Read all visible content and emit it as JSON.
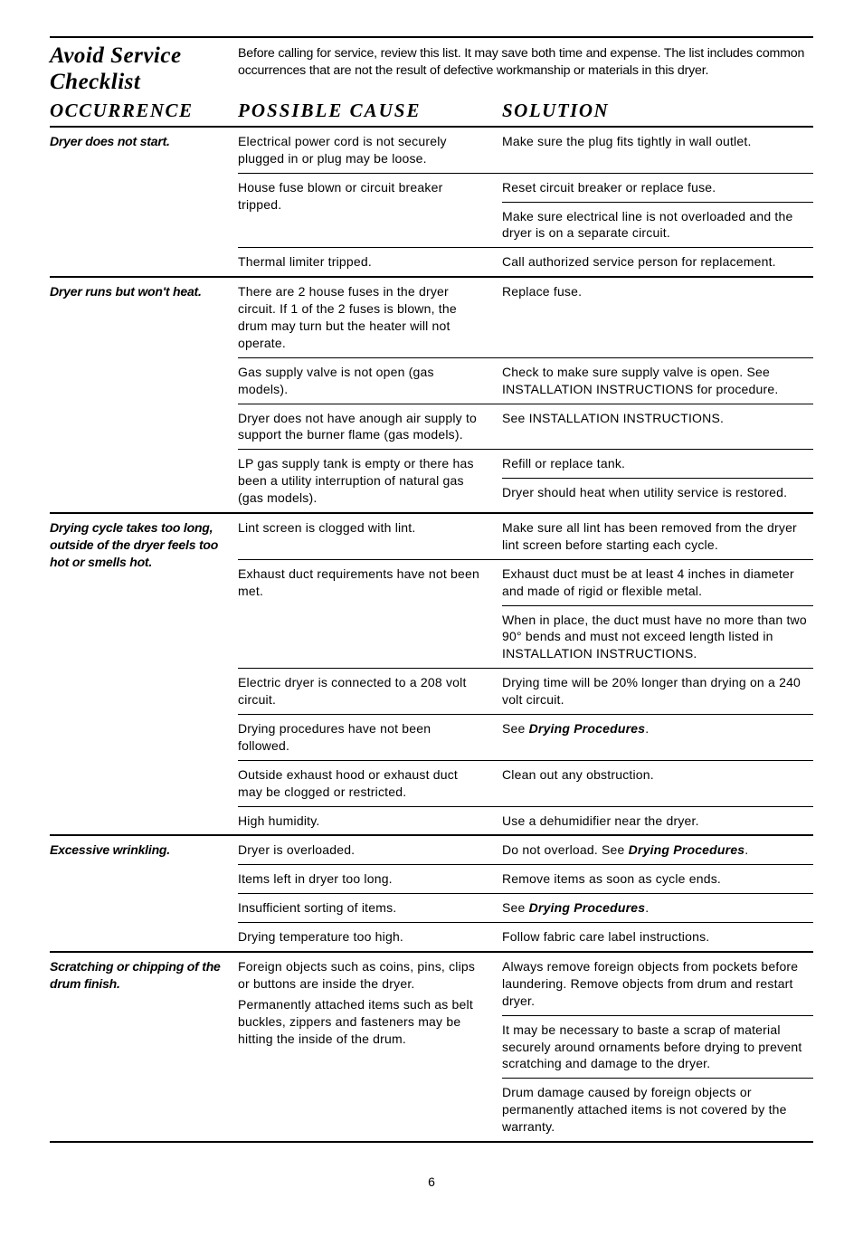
{
  "title": "Avoid Service Checklist",
  "intro": "Before calling for service, review this list. It may save both time and expense. The list includes common occurrences that are not the result of defective workmanship or materials in this dryer.",
  "headers": {
    "c1": "OCCURRENCE",
    "c2": "POSSIBLE CAUSE",
    "c3": "SOLUTION"
  },
  "sections": [
    {
      "occurrence": "Dryer does not start.",
      "pairs": [
        {
          "cause": "Electrical power cord is not securely plugged in or plug may be loose.",
          "solutions": [
            "Make sure the plug fits tightly in wall outlet."
          ]
        },
        {
          "cause": "House fuse blown or circuit breaker tripped.",
          "solutions": [
            "Reset circuit breaker or replace fuse.",
            "Make sure electrical line is not overloaded and the dryer is on a separate circuit."
          ]
        },
        {
          "cause": "Thermal limiter tripped.",
          "solutions": [
            "Call authorized service person for replacement."
          ]
        }
      ]
    },
    {
      "occurrence": "Dryer runs but won't heat.",
      "pairs": [
        {
          "cause": "There are 2 house fuses in the dryer circuit. If 1 of the 2 fuses is blown, the drum may turn but the heater will not operate.",
          "solutions": [
            "Replace fuse."
          ]
        },
        {
          "cause": "Gas supply valve is not open (gas models).",
          "solutions": [
            "Check to make sure supply valve is open. See INSTALLATION INSTRUCTIONS for procedure."
          ]
        },
        {
          "cause": "Dryer does not have anough air supply to support the burner flame (gas models).",
          "solutions": [
            "See INSTALLATION INSTRUCTIONS."
          ]
        },
        {
          "cause": "LP gas supply tank is empty or there has been a utility interruption of natural gas (gas models).",
          "solutions": [
            "Refill or replace tank.",
            "Dryer should heat when utility service is restored."
          ]
        }
      ]
    },
    {
      "occurrence": "Drying cycle takes too long, outside of the dryer feels too hot or smells hot.",
      "pairs": [
        {
          "cause": "Lint screen is clogged with lint.",
          "solutions": [
            "Make sure all lint has been removed from the dryer lint screen before starting each cycle."
          ]
        },
        {
          "cause": "Exhaust duct requirements have not been met.",
          "solutions": [
            "Exhaust duct must be at least 4 inches in diameter and made of rigid or flexible metal.",
            "When in place, the duct must have no more than two 90° bends and must not exceed length listed in INSTALLATION INSTRUCTIONS."
          ]
        },
        {
          "cause": "Electric dryer is connected to a 208 volt circuit.",
          "solutions": [
            "Drying time will be 20% longer than drying on a 240 volt circuit."
          ]
        },
        {
          "cause": "Drying procedures have not been followed.",
          "solutions": [
            "See |Drying Procedures|."
          ]
        },
        {
          "cause": "Outside exhaust hood or exhaust duct may be clogged or restricted.",
          "solutions": [
            "Clean out any obstruction."
          ]
        },
        {
          "cause": "High humidity.",
          "solutions": [
            "Use a dehumidifier near the dryer."
          ]
        }
      ]
    },
    {
      "occurrence": "Excessive wrinkling.",
      "pairs": [
        {
          "cause": "Dryer is overloaded.",
          "solutions": [
            "Do not overload. See |Drying Procedures|."
          ]
        },
        {
          "cause": "Items left in dryer too long.",
          "solutions": [
            "Remove items as soon as cycle ends."
          ]
        },
        {
          "cause": "Insufficient sorting of items.",
          "solutions": [
            "See |Drying Procedures|."
          ]
        },
        {
          "cause": "Drying temperature too high.",
          "solutions": [
            "Follow fabric care label instructions."
          ]
        }
      ]
    },
    {
      "occurrence": "Scratching or chipping of the drum finish.",
      "pairs": [
        {
          "cause": "Foreign objects such as coins, pins, clips or buttons are inside the dryer.\nPermanently attached items such as belt buckles, zippers and fasteners may be hitting the inside of the drum.",
          "solutions": [
            "Always remove foreign objects from pockets before laundering. Remove objects from drum and restart dryer.",
            "It may be necessary to baste a scrap of material securely around ornaments before drying to prevent scratching and damage to the dryer.",
            "Drum damage caused by foreign objects or permanently attached items is not covered by the warranty."
          ]
        }
      ]
    }
  ],
  "page_number": "6"
}
